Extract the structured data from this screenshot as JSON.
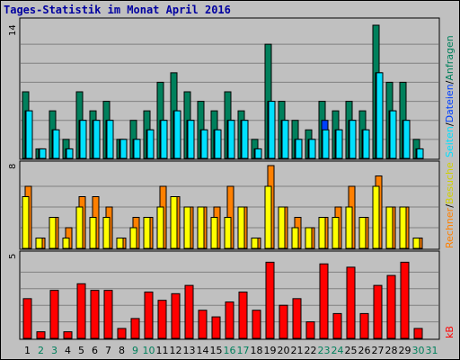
{
  "title": "Tages-Statistik im Monat April 2016",
  "legend": {
    "anfragen": "Anfragen",
    "dateien": "Dateien",
    "seiten": "Seiten",
    "besuche": "Besuche",
    "rechner": "Rechner",
    "kb": "kB",
    "sep": "/"
  },
  "colors": {
    "anfragen": "#00805c",
    "dateien": "#0040ff",
    "seiten": "#00e0ff",
    "besuche": "#ffff00",
    "rechner": "#ff8000",
    "kb": "#ff0000",
    "weekday_label": "#000000",
    "weekend_label": "#00805c"
  },
  "chart_data": [
    {
      "type": "bar",
      "title": "",
      "ymax_label": "14",
      "ylim": [
        0,
        14
      ],
      "categories": [
        "1",
        "2",
        "3",
        "4",
        "5",
        "6",
        "7",
        "8",
        "9",
        "10",
        "11",
        "12",
        "13",
        "14",
        "15",
        "16",
        "17",
        "18",
        "19",
        "20",
        "21",
        "22",
        "23",
        "24",
        "25",
        "26",
        "27",
        "28",
        "29",
        "30",
        "31"
      ],
      "series": [
        {
          "name": "Anfragen",
          "values": [
            7,
            1,
            5,
            2,
            7,
            5,
            6,
            2,
            4,
            5,
            8,
            9,
            7,
            6,
            5,
            7,
            5,
            2,
            12,
            6,
            4,
            3,
            6,
            5,
            6,
            5,
            14,
            8,
            8,
            2,
            0
          ]
        },
        {
          "name": "Dateien",
          "values": [
            5,
            1,
            3,
            1,
            4,
            4,
            4,
            2,
            2,
            3,
            4,
            5,
            4,
            3,
            3,
            4,
            4,
            1,
            6,
            4,
            2,
            2,
            4,
            3,
            4,
            3,
            9,
            5,
            4,
            1,
            0
          ]
        },
        {
          "name": "Seiten",
          "values": [
            5,
            1,
            3,
            1,
            4,
            4,
            4,
            2,
            2,
            3,
            4,
            5,
            4,
            3,
            3,
            4,
            4,
            1,
            6,
            4,
            2,
            2,
            3,
            3,
            4,
            3,
            9,
            5,
            4,
            1,
            0
          ]
        }
      ]
    },
    {
      "type": "bar",
      "title": "",
      "ymax_label": "8",
      "ylim": [
        0,
        8
      ],
      "categories": [
        "1",
        "2",
        "3",
        "4",
        "5",
        "6",
        "7",
        "8",
        "9",
        "10",
        "11",
        "12",
        "13",
        "14",
        "15",
        "16",
        "17",
        "18",
        "19",
        "20",
        "21",
        "22",
        "23",
        "24",
        "25",
        "26",
        "27",
        "28",
        "29",
        "30",
        "31"
      ],
      "series": [
        {
          "name": "Besuche",
          "values": [
            5,
            1,
            3,
            1,
            4,
            3,
            3,
            1,
            2,
            3,
            4,
            5,
            4,
            4,
            3,
            3,
            4,
            1,
            6,
            4,
            2,
            2,
            3,
            3,
            4,
            3,
            6,
            4,
            4,
            1,
            0
          ]
        },
        {
          "name": "Rechner",
          "values": [
            6,
            1,
            3,
            2,
            5,
            5,
            4,
            1,
            3,
            3,
            6,
            5,
            4,
            4,
            4,
            6,
            4,
            1,
            8,
            4,
            3,
            2,
            3,
            4,
            6,
            3,
            7,
            4,
            4,
            1,
            0
          ]
        }
      ]
    },
    {
      "type": "bar",
      "title": "",
      "ymax_label": "5",
      "ylim": [
        0,
        5
      ],
      "categories": [
        "1",
        "2",
        "3",
        "4",
        "5",
        "6",
        "7",
        "8",
        "9",
        "10",
        "11",
        "12",
        "13",
        "14",
        "15",
        "16",
        "17",
        "18",
        "19",
        "20",
        "21",
        "22",
        "23",
        "24",
        "25",
        "26",
        "27",
        "28",
        "29",
        "30",
        "31"
      ],
      "series": [
        {
          "name": "kB",
          "values": [
            2.4,
            0.4,
            2.9,
            0.4,
            3.3,
            2.9,
            2.9,
            0.6,
            1.2,
            2.8,
            2.3,
            2.7,
            3.2,
            1.7,
            1.3,
            2.2,
            2.8,
            1.7,
            4.6,
            2.0,
            2.4,
            1.0,
            4.5,
            1.5,
            4.3,
            1.5,
            3.2,
            3.8,
            4.6,
            0.6,
            0
          ]
        }
      ]
    }
  ],
  "days": {
    "labels": [
      "1",
      "2",
      "3",
      "4",
      "5",
      "6",
      "7",
      "8",
      "9",
      "10",
      "11",
      "12",
      "13",
      "14",
      "15",
      "16",
      "17",
      "18",
      "19",
      "20",
      "21",
      "22",
      "23",
      "24",
      "25",
      "26",
      "27",
      "28",
      "29",
      "30",
      "31"
    ],
    "weekend_flags": [
      0,
      1,
      1,
      0,
      0,
      0,
      0,
      0,
      1,
      1,
      0,
      0,
      0,
      0,
      0,
      1,
      1,
      0,
      0,
      0,
      0,
      0,
      1,
      1,
      0,
      0,
      0,
      0,
      0,
      1,
      1
    ]
  }
}
